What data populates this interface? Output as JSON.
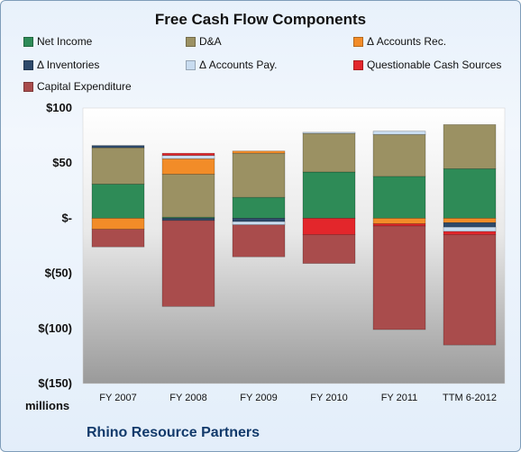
{
  "chart_data": {
    "type": "bar",
    "stacked": true,
    "title": "Free Cash Flow Components",
    "units_label": "millions",
    "footer": "Rhino Resource Partners",
    "categories": [
      "FY 2007",
      "FY 2008",
      "FY 2009",
      "FY 2010",
      "FY 2011",
      "TTM 6-2012"
    ],
    "ylim": [
      -150,
      100
    ],
    "yticks": [
      100,
      50,
      0,
      -50,
      -100,
      -150
    ],
    "ytick_labels": [
      "$100",
      "$50",
      "$-",
      "$(50)",
      "$(100)",
      "$(150)"
    ],
    "grid": false,
    "legend_position": "top",
    "series": [
      {
        "name": "Net Income",
        "color": "#2e8b57",
        "values": [
          31,
          1,
          19,
          42,
          38,
          45
        ]
      },
      {
        "name": "D&A",
        "color": "#9b9163",
        "values": [
          33,
          39,
          40,
          35,
          38,
          40
        ]
      },
      {
        "name": "Δ Accounts Rec.",
        "color": "#f28c28",
        "values": [
          -10,
          14,
          2,
          0,
          -5,
          -4
        ]
      },
      {
        "name": "Δ Inventories",
        "color": "#2e4a6b",
        "values": [
          2,
          -2,
          -3,
          0,
          0,
          -4
        ]
      },
      {
        "name": "Δ Accounts Pay.",
        "color": "#c8dcf0",
        "values": [
          0,
          3,
          -3,
          1,
          3,
          -4
        ]
      },
      {
        "name": "Questionable Cash Sources",
        "color": "#e3262b",
        "values": [
          0,
          2,
          0,
          -15,
          -2,
          -3
        ]
      },
      {
        "name": "Capital Expenditure",
        "color": "#a94c4c",
        "values": [
          -16,
          -78,
          -29,
          -26,
          -94,
          -100
        ]
      }
    ]
  }
}
